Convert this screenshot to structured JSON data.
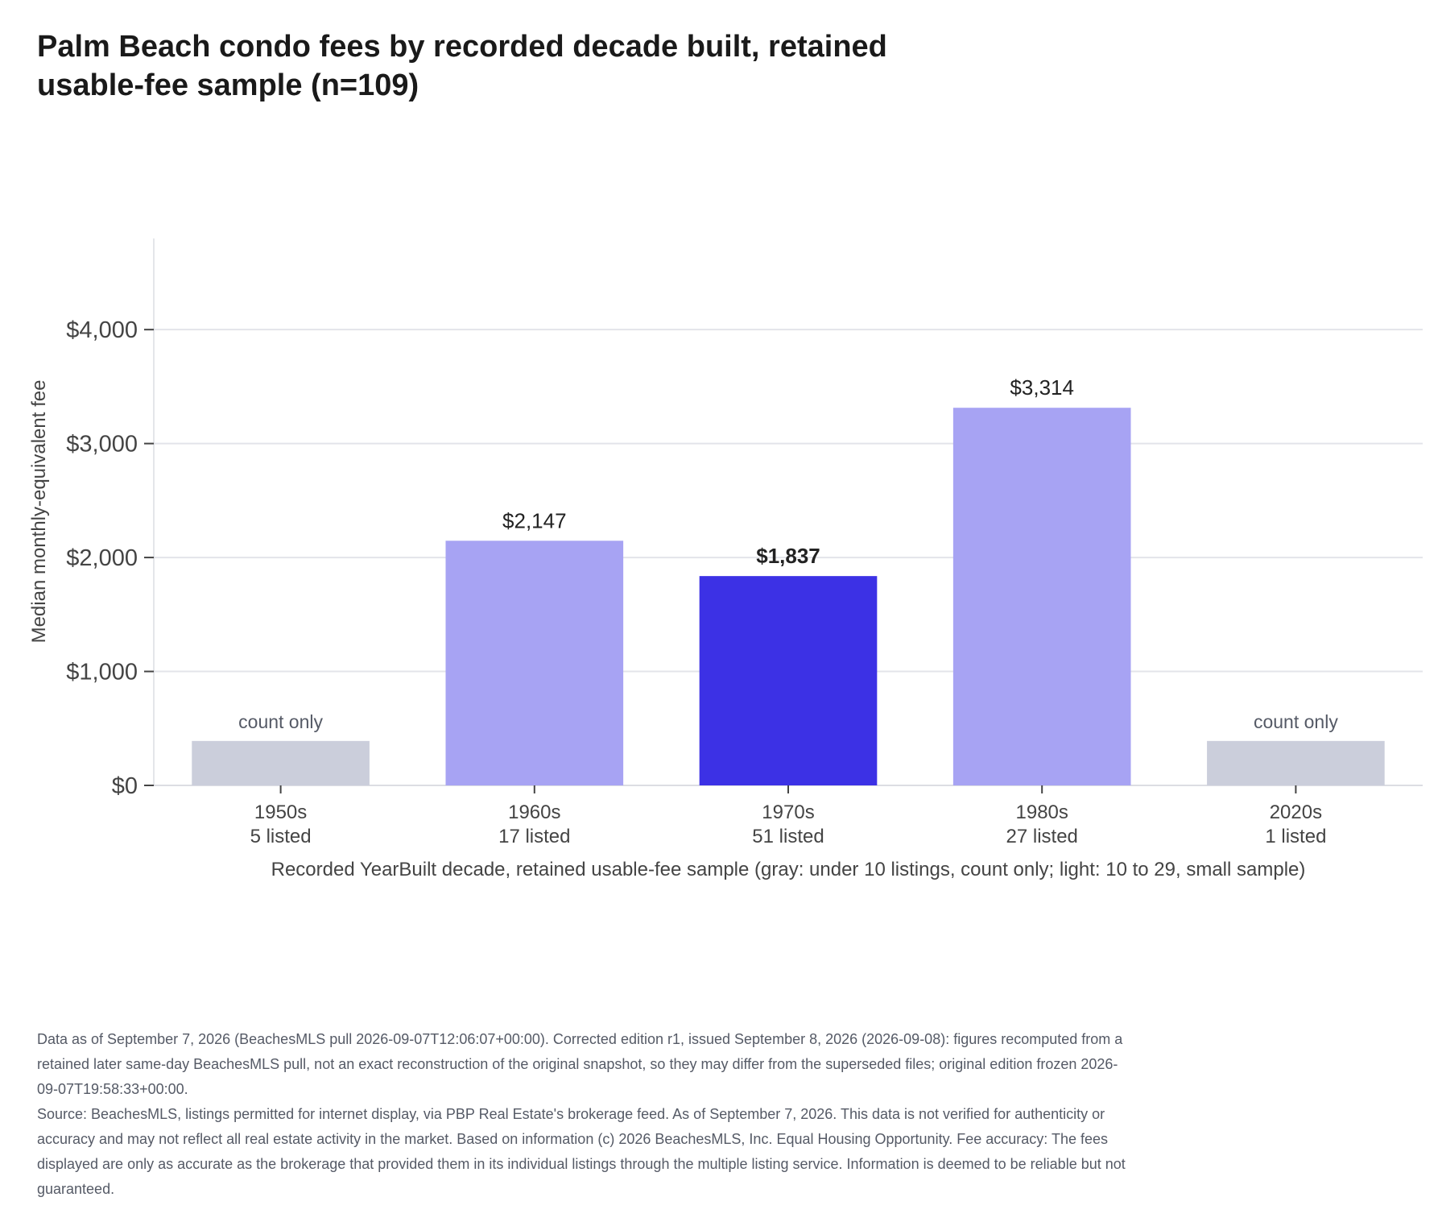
{
  "chart_data": {
    "type": "bar",
    "title": "Palm Beach condo fees by recorded decade built, retained usable-fee sample (n=109)",
    "xlabel": "Recorded YearBuilt decade, retained usable-fee sample (gray: under 10 listings, count only; light: 10 to 29, small sample)",
    "ylabel": "Median monthly-equivalent fee",
    "ylim": [
      0,
      4800
    ],
    "yticks": [
      0,
      1000,
      2000,
      3000,
      4000
    ],
    "ytick_labels": [
      "$0",
      "$1,000",
      "$2,000",
      "$3,000",
      "$4,000"
    ],
    "grid": "horizontal",
    "categories": [
      "1950s",
      "1960s",
      "1970s",
      "1980s",
      "2020s"
    ],
    "counts": [
      "5 listed",
      "17 listed",
      "51 listed",
      "27 listed",
      "1 listed"
    ],
    "values": [
      null,
      2147,
      1837,
      3314,
      null
    ],
    "placeholder_value": 390,
    "labels": [
      "count only",
      "$2,147",
      "$1,837",
      "$3,314",
      "count only"
    ],
    "tiers": [
      "count-only",
      "small-sample",
      "full",
      "small-sample",
      "count-only"
    ],
    "colors": {
      "count-only": "#cbcedb",
      "small-sample": "#a7a3f3",
      "full": "#3c31e5"
    }
  },
  "footnotes": {
    "data_note": "Data as of September 7, 2026 (BeachesMLS pull 2026-09-07T12:06:07+00:00). Corrected edition r1, issued September 8, 2026 (2026-09-08): figures recomputed from a retained later same-day BeachesMLS pull, not an exact reconstruction of the original snapshot, so they may differ from the superseded files; original edition frozen 2026-09-07T19:58:33+00:00.",
    "source_note": "Source: BeachesMLS, listings permitted for internet display, via PBP Real Estate's brokerage feed. As of September 7, 2026. This data is not verified for authenticity or accuracy and may not reflect all real estate activity in the market. Based on information (c) 2026 BeachesMLS, Inc. Equal Housing Opportunity. Fee accuracy: The fees displayed are only as accurate as the brokerage that provided them in its individual listings through the multiple listing service. Information is deemed to be reliable but not guaranteed."
  }
}
